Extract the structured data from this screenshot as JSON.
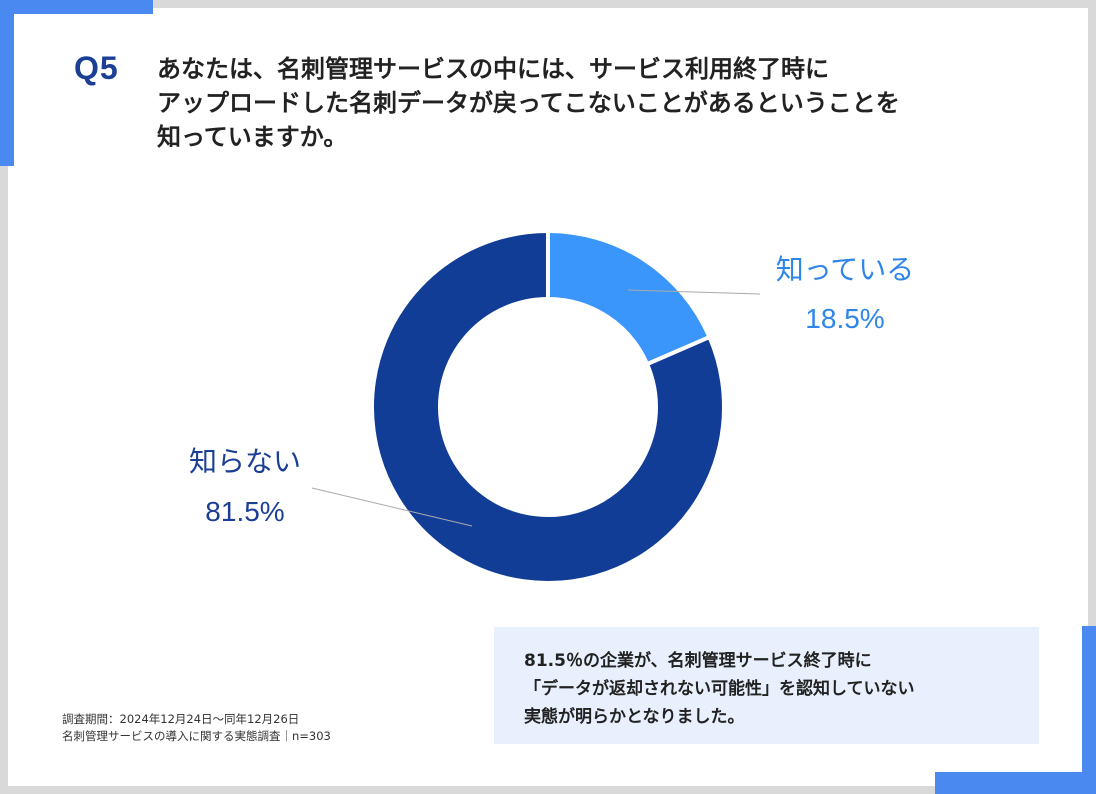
{
  "question": {
    "number": "Q5",
    "lines": [
      "あなたは、名刺管理サービスの中には、サービス利用終了時に",
      "アップロードした名刺データが戻ってこないことがあるということを",
      "知っていますか。"
    ]
  },
  "chart_data": {
    "type": "pie",
    "style": "donut",
    "title": "",
    "slices": [
      {
        "label": "知っている",
        "value": 18.5,
        "value_label": "18.5%",
        "color": "#3a96fb"
      },
      {
        "label": "知らない",
        "value": 81.5,
        "value_label": "81.5%",
        "color": "#123d97"
      }
    ],
    "start_angle_deg": 0,
    "direction": "clockwise",
    "legend": "none"
  },
  "summary": {
    "lines": [
      "81.5％の企業が、名刺管理サービス終了時に",
      "「データが返却されない可能性」を認知していない",
      "実態が明らかとなりました。"
    ]
  },
  "footnote": {
    "period": "調査期間：2024年12月24日～同年12月26日",
    "survey": "名刺管理サービスの導入に関する実態調査｜n=303"
  },
  "colors": {
    "accent": "#4a8af0",
    "title": "#1b3f94",
    "summary_bg": "#e8f0fd"
  }
}
